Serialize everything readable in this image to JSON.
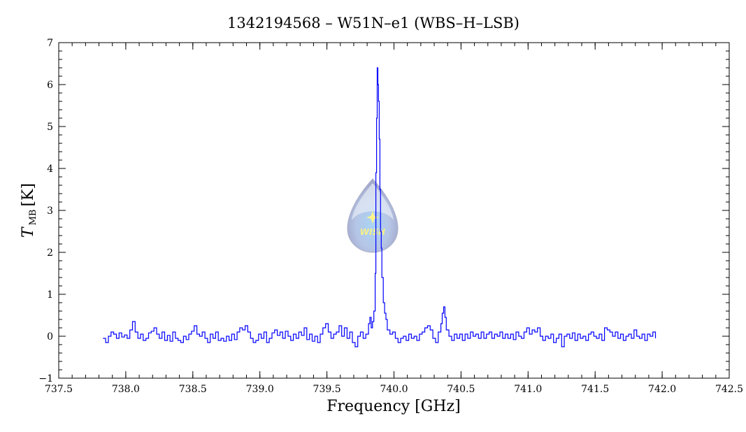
{
  "chart_data": {
    "type": "line",
    "title": "1342194568 – W51N–e1 (WBS–H–LSB)",
    "xlabel": "Frequency [GHz]",
    "ylabel_main": "T",
    "ylabel_sub": "MB",
    "ylabel_unit": "[K]",
    "xlim": [
      737.5,
      742.5
    ],
    "ylim": [
      -1,
      7
    ],
    "xticks": [
      737.5,
      738.0,
      738.5,
      739.0,
      739.5,
      740.0,
      740.5,
      741.0,
      741.5,
      742.0,
      742.5
    ],
    "xtick_labels": [
      "737.5",
      "738.0",
      "738.5",
      "739.0",
      "739.5",
      "740.0",
      "740.5",
      "741.0",
      "741.5",
      "742.0",
      "742.5"
    ],
    "yticks": [
      -1,
      0,
      1,
      2,
      3,
      4,
      5,
      6,
      7
    ],
    "ytick_labels": [
      "−1",
      "0",
      "1",
      "2",
      "3",
      "4",
      "5",
      "6",
      "7"
    ],
    "grid": false,
    "line_color": "#0000ff",
    "logo_text": "WISH",
    "series": [
      {
        "x": [
          737.83,
          737.85,
          737.87,
          737.89,
          737.91,
          737.93,
          737.95,
          737.97,
          737.99,
          738.01,
          738.03,
          738.05,
          738.07,
          738.09,
          738.11,
          738.13,
          738.15,
          738.17,
          738.19,
          738.21,
          738.23,
          738.25,
          738.27,
          738.29,
          738.31,
          738.33,
          738.35,
          738.37,
          738.39,
          738.41,
          738.43,
          738.45,
          738.47,
          738.49,
          738.51,
          738.53,
          738.55,
          738.57,
          738.59,
          738.61,
          738.63,
          738.65,
          738.67,
          738.69,
          738.71,
          738.73,
          738.75,
          738.77,
          738.79,
          738.81,
          738.83,
          738.85,
          738.87,
          738.89,
          738.91,
          738.93,
          738.95,
          738.97,
          738.99,
          739.01,
          739.03,
          739.05,
          739.07,
          739.09,
          739.11,
          739.13,
          739.15,
          739.17,
          739.19,
          739.21,
          739.23,
          739.25,
          739.27,
          739.29,
          739.31,
          739.33,
          739.35,
          739.37,
          739.39,
          739.41,
          739.43,
          739.45,
          739.47,
          739.49,
          739.51,
          739.53,
          739.55,
          739.57,
          739.59,
          739.61,
          739.63,
          739.65,
          739.67,
          739.69,
          739.71,
          739.73,
          739.75,
          739.77,
          739.79,
          739.81,
          739.82,
          739.83,
          739.84,
          739.85,
          739.86,
          739.865,
          739.87,
          739.875,
          739.88,
          739.885,
          739.89,
          739.895,
          739.9,
          739.905,
          739.91,
          739.92,
          739.93,
          739.94,
          739.95,
          739.97,
          739.99,
          740.01,
          740.03,
          740.05,
          740.07,
          740.09,
          740.11,
          740.13,
          740.15,
          740.17,
          740.19,
          740.21,
          740.23,
          740.25,
          740.27,
          740.29,
          740.31,
          740.33,
          740.35,
          740.36,
          740.37,
          740.38,
          740.39,
          740.41,
          740.43,
          740.45,
          740.47,
          740.49,
          740.51,
          740.53,
          740.55,
          740.57,
          740.59,
          740.61,
          740.63,
          740.65,
          740.67,
          740.69,
          740.71,
          740.73,
          740.75,
          740.77,
          740.79,
          740.81,
          740.83,
          740.85,
          740.87,
          740.89,
          740.91,
          740.93,
          740.95,
          740.97,
          740.99,
          741.01,
          741.03,
          741.05,
          741.07,
          741.09,
          741.11,
          741.13,
          741.15,
          741.17,
          741.19,
          741.21,
          741.23,
          741.25,
          741.27,
          741.29,
          741.31,
          741.33,
          741.35,
          741.37,
          741.39,
          741.41,
          741.43,
          741.45,
          741.47,
          741.49,
          741.51,
          741.53,
          741.55,
          741.57,
          741.59,
          741.61,
          741.63,
          741.65,
          741.67,
          741.69,
          741.71,
          741.73,
          741.75,
          741.77,
          741.79,
          741.81,
          741.83,
          741.85,
          741.87,
          741.89,
          741.91,
          741.93,
          741.95
        ],
        "y": [
          -0.05,
          -0.15,
          0.0,
          0.1,
          0.05,
          -0.05,
          0.08,
          -0.02,
          0.03,
          -0.05,
          0.15,
          0.35,
          0.1,
          -0.05,
          0.05,
          -0.1,
          -0.05,
          0.08,
          0.12,
          0.2,
          0.05,
          -0.05,
          0.1,
          -0.1,
          0.02,
          -0.12,
          0.1,
          -0.05,
          -0.1,
          -0.15,
          0.0,
          -0.08,
          0.05,
          0.12,
          0.25,
          0.05,
          0.0,
          0.1,
          -0.05,
          -0.15,
          0.05,
          -0.05,
          0.1,
          -0.1,
          -0.05,
          -0.12,
          0.0,
          -0.1,
          0.05,
          -0.08,
          0.1,
          0.2,
          0.15,
          0.25,
          0.1,
          -0.05,
          -0.15,
          -0.1,
          0.05,
          -0.05,
          0.1,
          -0.15,
          -0.05,
          0.08,
          0.15,
          0.02,
          0.1,
          -0.05,
          0.12,
          0.0,
          -0.1,
          0.05,
          -0.05,
          0.1,
          0.02,
          0.2,
          -0.08,
          0.05,
          -0.12,
          0.0,
          -0.15,
          0.05,
          0.2,
          0.3,
          0.1,
          -0.05,
          0.05,
          0.1,
          0.25,
          0.0,
          0.2,
          -0.05,
          0.1,
          -0.15,
          -0.25,
          0.0,
          0.1,
          -0.05,
          0.05,
          0.3,
          0.45,
          0.2,
          0.35,
          0.6,
          1.5,
          3.9,
          5.2,
          6.4,
          6.0,
          5.6,
          4.7,
          3.5,
          2.5,
          2.1,
          1.4,
          0.8,
          0.55,
          0.4,
          0.15,
          0.05,
          0.1,
          -0.05,
          -0.15,
          -0.05,
          0.0,
          -0.1,
          0.05,
          -0.05,
          0.0,
          -0.1,
          0.05,
          0.1,
          0.2,
          0.25,
          0.15,
          -0.05,
          -0.15,
          0.1,
          0.3,
          0.55,
          0.7,
          0.45,
          0.15,
          0.0,
          -0.1,
          0.05,
          -0.05,
          0.05,
          -0.1,
          0.05,
          -0.05,
          0.1,
          0.0,
          0.05,
          -0.05,
          0.1,
          -0.05,
          0.05,
          0.1,
          -0.05,
          0.05,
          0.0,
          0.1,
          -0.05,
          0.05,
          -0.05,
          0.05,
          -0.08,
          0.1,
          0.0,
          -0.05,
          0.1,
          0.2,
          0.05,
          0.15,
          0.1,
          0.2,
          0.0,
          -0.1,
          0.0,
          -0.05,
          0.05,
          -0.15,
          -0.05,
          0.05,
          -0.25,
          0.0,
          0.05,
          -0.05,
          0.08,
          -0.1,
          0.05,
          -0.05,
          0.0,
          -0.1,
          0.05,
          0.1,
          0.0,
          -0.05,
          0.05,
          -0.1,
          0.2,
          0.15,
          0.1,
          0.0,
          0.1,
          -0.05,
          0.05,
          -0.1,
          0.0,
          0.05,
          -0.05,
          0.15,
          0.0,
          -0.05,
          0.05,
          -0.1,
          0.05,
          0.0,
          0.1,
          -0.05
        ]
      }
    ]
  }
}
